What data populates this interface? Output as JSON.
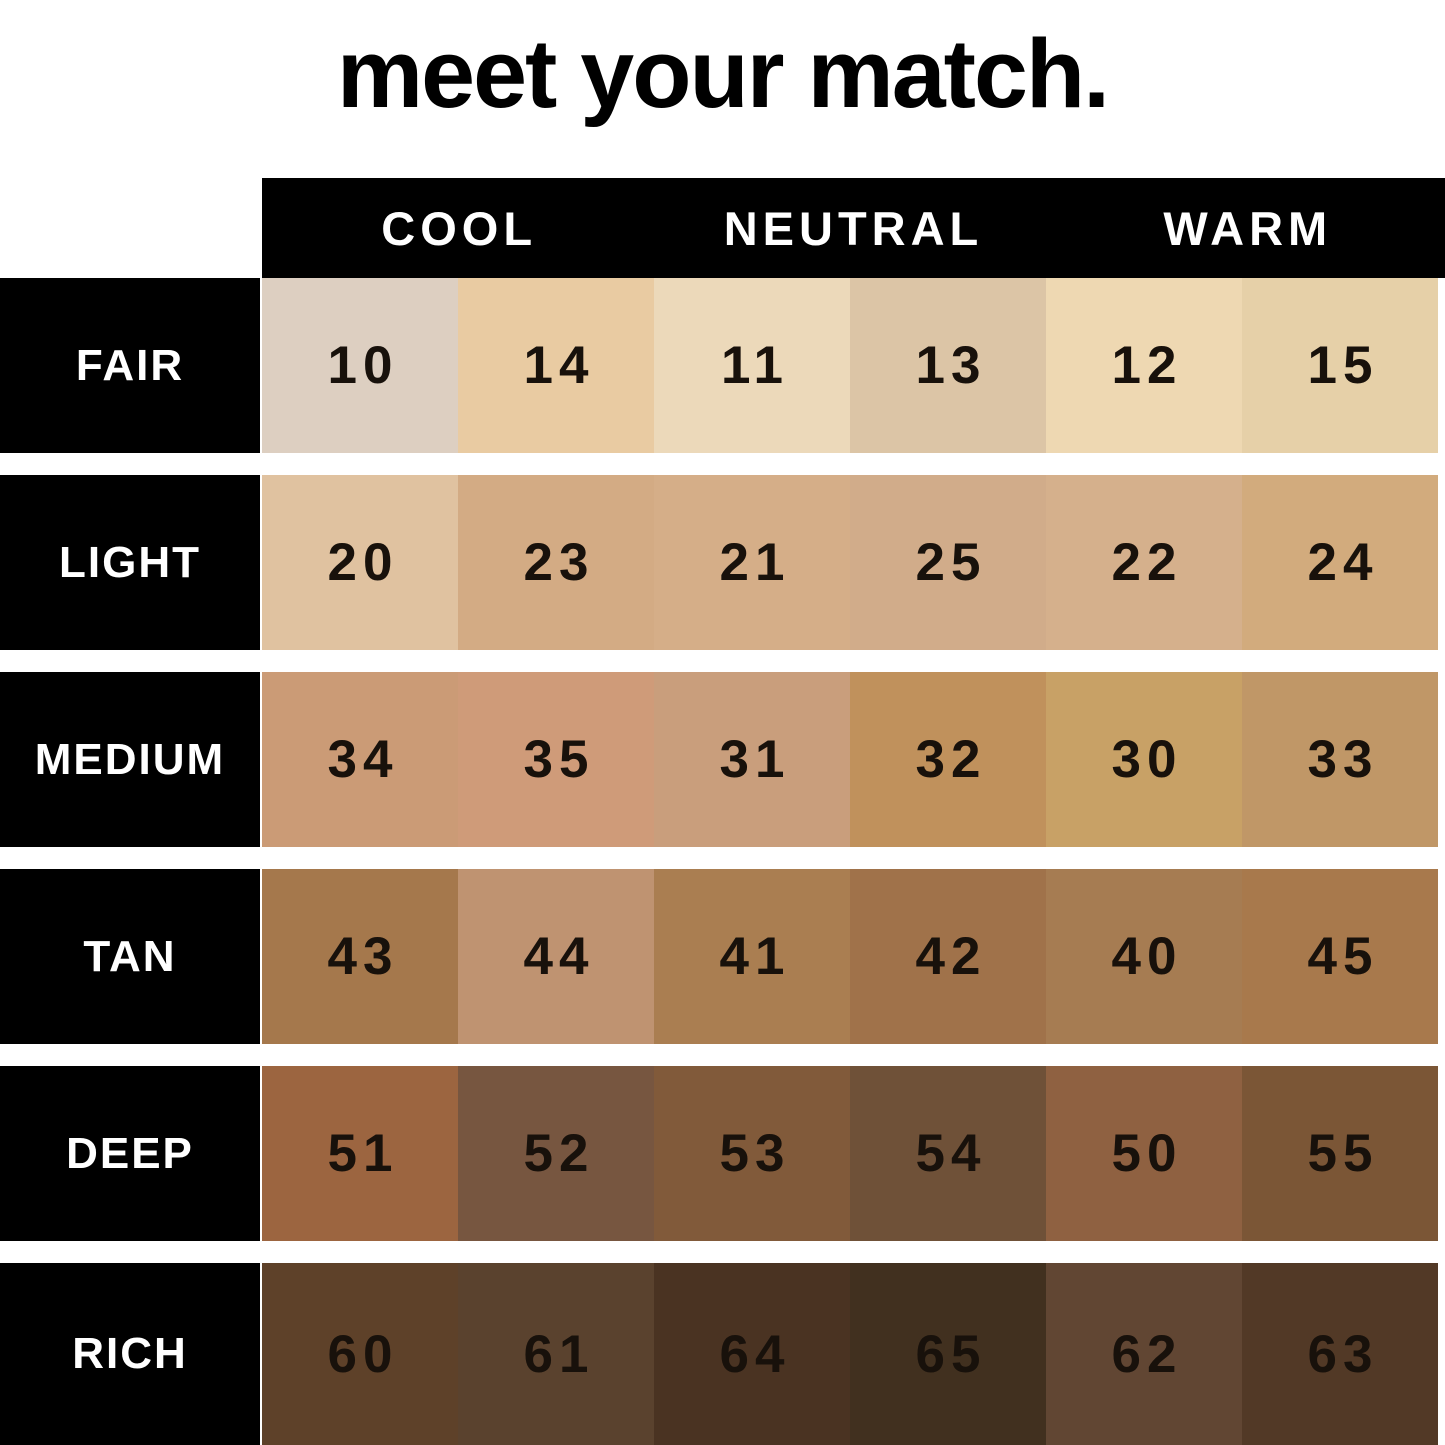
{
  "title": "meet your match.",
  "header": {
    "labels": [
      "COOL",
      "NEUTRAL",
      "WARM"
    ]
  },
  "colors": {
    "page_bg": "#ffffff",
    "panel_bg": "#000000",
    "panel_text": "#ffffff",
    "number_text": "#18110b"
  },
  "chart_data": {
    "type": "table",
    "title": "meet your match.",
    "column_groups": [
      "COOL",
      "NEUTRAL",
      "WARM"
    ],
    "columns_per_group": 2,
    "row_labels": [
      "FAIR",
      "LIGHT",
      "MEDIUM",
      "TAN",
      "DEEP",
      "RICH"
    ],
    "rows": [
      {
        "label": "FAIR",
        "swatches": [
          {
            "shade": "10",
            "color": "#ddcfc1"
          },
          {
            "shade": "14",
            "color": "#e9cba2"
          },
          {
            "shade": "11",
            "color": "#ecd9ba"
          },
          {
            "shade": "13",
            "color": "#dcc5a6"
          },
          {
            "shade": "12",
            "color": "#eed8b2"
          },
          {
            "shade": "15",
            "color": "#e6d0a8"
          }
        ]
      },
      {
        "label": "LIGHT",
        "swatches": [
          {
            "shade": "20",
            "color": "#e0c2a0"
          },
          {
            "shade": "23",
            "color": "#d3ab84"
          },
          {
            "shade": "21",
            "color": "#d5ae88"
          },
          {
            "shade": "25",
            "color": "#d1ac8a"
          },
          {
            "shade": "22",
            "color": "#d5b08c"
          },
          {
            "shade": "24",
            "color": "#d2ab7d"
          }
        ]
      },
      {
        "label": "MEDIUM",
        "swatches": [
          {
            "shade": "34",
            "color": "#cb9b76"
          },
          {
            "shade": "35",
            "color": "#cf9b79"
          },
          {
            "shade": "31",
            "color": "#c99e7c"
          },
          {
            "shade": "32",
            "color": "#c0915c"
          },
          {
            "shade": "30",
            "color": "#c8a166"
          },
          {
            "shade": "33",
            "color": "#c09767"
          }
        ]
      },
      {
        "label": "TAN",
        "swatches": [
          {
            "shade": "43",
            "color": "#a5784c"
          },
          {
            "shade": "44",
            "color": "#bf9371"
          },
          {
            "shade": "41",
            "color": "#aa7e51"
          },
          {
            "shade": "42",
            "color": "#a0724a"
          },
          {
            "shade": "40",
            "color": "#a67c52"
          },
          {
            "shade": "45",
            "color": "#a8794c"
          }
        ]
      },
      {
        "label": "DEEP",
        "swatches": [
          {
            "shade": "51",
            "color": "#9c6540"
          },
          {
            "shade": "52",
            "color": "#775640"
          },
          {
            "shade": "53",
            "color": "#815a3a"
          },
          {
            "shade": "54",
            "color": "#6f5138"
          },
          {
            "shade": "50",
            "color": "#8f6141"
          },
          {
            "shade": "55",
            "color": "#7b5636"
          }
        ]
      },
      {
        "label": "RICH",
        "swatches": [
          {
            "shade": "60",
            "color": "#5e4129"
          },
          {
            "shade": "61",
            "color": "#5a422e"
          },
          {
            "shade": "64",
            "color": "#4a3322"
          },
          {
            "shade": "65",
            "color": "#41301f"
          },
          {
            "shade": "62",
            "color": "#614633"
          },
          {
            "shade": "63",
            "color": "#523926"
          }
        ]
      }
    ]
  }
}
